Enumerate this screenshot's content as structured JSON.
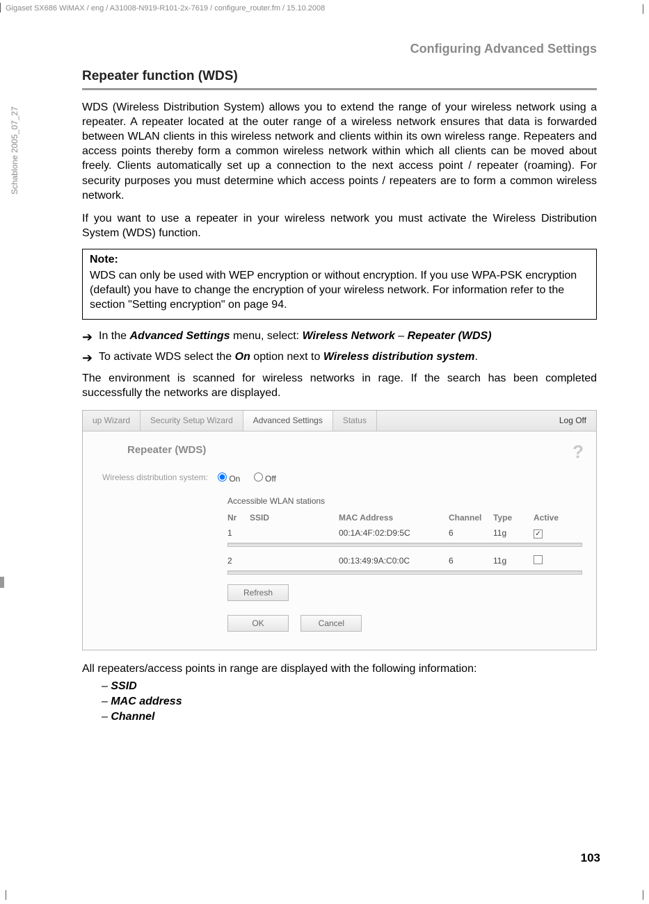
{
  "meta": {
    "doc_header": "Gigaset SX686 WiMAX / eng / A31008-N919-R101-2x-7619 / configure_router.fm / 15.10.2008",
    "side_label": "Schablone 2005_07_27"
  },
  "header": {
    "section": "Configuring Advanced Settings"
  },
  "title": "Repeater function (WDS)",
  "paragraphs": {
    "p1": "WDS (Wireless Distribution System) allows you to extend the range of your wireless network using a repeater. A repeater located at the outer range of a wireless network ensures that data is forwarded between WLAN clients in this wireless network and clients within its own wireless range. Repeaters and access points thereby form a common wireless network within which all clients can be moved about freely. Clients automatically set up a connection to the next access point / repeater (roaming). For security purposes you must determine which access points / repeaters are to form a common wireless network.",
    "p2": "If you want to use a repeater in your wireless network you must activate the Wireless Distribution System (WDS) function."
  },
  "note": {
    "label": "Note:",
    "text": "WDS can only be used with WEP encryption or without encryption. If you use WPA-PSK encryption (default) you have to change the encryption of your wireless network. For information refer to the section \"Setting encryption\" on page 94."
  },
  "arrows": {
    "a1_pre": "In the ",
    "a1_b1": "Advanced Settings",
    "a1_mid": " menu, select: ",
    "a1_b2": "Wireless Network",
    "a1_dash": " – ",
    "a1_b3": "Repeater (WDS)",
    "a2_pre": "To activate WDS select the ",
    "a2_b1": "On",
    "a2_mid": " option next to ",
    "a2_b2": "Wireless distribution system",
    "a2_end": "."
  },
  "post_arrows": "The environment is scanned for wireless networks in rage. If the search has been completed successfully the networks are displayed.",
  "ui": {
    "tabs": {
      "t1": "up Wizard",
      "t2": "Security Setup Wizard",
      "t3": "Advanced Settings",
      "t4": "Status"
    },
    "logoff": "Log Off",
    "panel_title": "Repeater (WDS)",
    "wds_label": "Wireless distribution system:",
    "radio_on": "On",
    "radio_off": "Off",
    "sub_caption": "Accessible WLAN stations",
    "headers": {
      "nr": "Nr",
      "ssid": "SSID",
      "mac": "MAC Address",
      "channel": "Channel",
      "type": "Type",
      "active": "Active"
    },
    "rows": [
      {
        "nr": "1",
        "ssid": "",
        "mac": "00:1A:4F:02:D9:5C",
        "channel": "6",
        "type": "11g",
        "active": true
      },
      {
        "nr": "2",
        "ssid": "",
        "mac": "00:13:49:9A:C0:0C",
        "channel": "6",
        "type": "11g",
        "active": false
      }
    ],
    "buttons": {
      "refresh": "Refresh",
      "ok": "OK",
      "cancel": "Cancel"
    }
  },
  "after": {
    "lead": "All repeaters/access points in range are displayed with the following information:",
    "items": {
      "ssid": "SSID",
      "mac": "MAC address",
      "channel": "Channel"
    }
  },
  "page_number": "103",
  "colors": {
    "grey_text": "#8a8a8a",
    "panel_border": "#b8b8b8"
  }
}
